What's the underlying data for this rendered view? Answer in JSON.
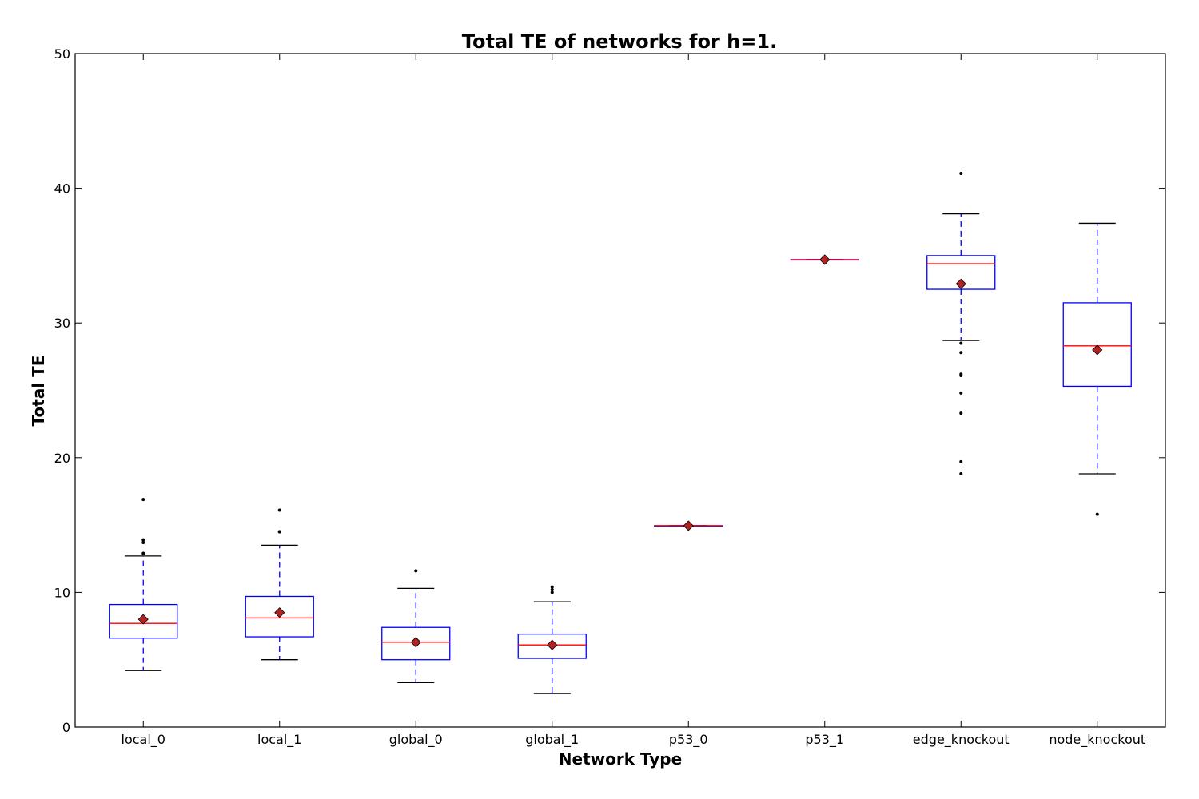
{
  "chart_data": {
    "type": "boxplot",
    "title": "Total TE of networks for h=1.",
    "xlabel": "Network Type",
    "ylabel": "Total TE",
    "ylim": [
      0,
      50
    ],
    "yticks": [
      0,
      10,
      20,
      30,
      40,
      50
    ],
    "grid": false,
    "colors": {
      "box": "#0000ff",
      "median": "#ff0000",
      "whisker": "#0000ff",
      "cap": "#000000",
      "mean_marker": "#b22222",
      "flier": "#000000"
    },
    "series": [
      {
        "name": "local_0",
        "whisker_low": 4.2,
        "q1": 6.6,
        "median": 7.7,
        "q3": 9.1,
        "whisker_high": 12.7,
        "mean": 8.0,
        "outliers": [
          12.9,
          13.7,
          13.9,
          16.9
        ]
      },
      {
        "name": "local_1",
        "whisker_low": 5.0,
        "q1": 6.7,
        "median": 8.1,
        "q3": 9.7,
        "whisker_high": 13.5,
        "mean": 8.5,
        "outliers": [
          14.5,
          14.5,
          16.1
        ]
      },
      {
        "name": "global_0",
        "whisker_low": 3.3,
        "q1": 5.0,
        "median": 6.3,
        "q3": 7.4,
        "whisker_high": 10.3,
        "mean": 6.3,
        "outliers": [
          11.6
        ]
      },
      {
        "name": "global_1",
        "whisker_low": 2.5,
        "q1": 5.1,
        "median": 6.1,
        "q3": 6.9,
        "whisker_high": 9.3,
        "mean": 6.1,
        "outliers": [
          10.0,
          10.2,
          10.4
        ]
      },
      {
        "name": "p53_0",
        "whisker_low": 14.95,
        "q1": 14.95,
        "median": 14.95,
        "q3": 14.95,
        "whisker_high": 14.95,
        "mean": 14.95,
        "outliers": []
      },
      {
        "name": "p53_1",
        "whisker_low": 34.7,
        "q1": 34.7,
        "median": 34.7,
        "q3": 34.7,
        "whisker_high": 34.7,
        "mean": 34.7,
        "outliers": []
      },
      {
        "name": "edge_knockout",
        "whisker_low": 28.7,
        "q1": 32.5,
        "median": 34.4,
        "q3": 35.0,
        "whisker_high": 38.1,
        "mean": 32.9,
        "outliers": [
          18.8,
          19.7,
          23.3,
          24.8,
          26.1,
          26.2,
          27.8,
          28.5,
          41.1
        ]
      },
      {
        "name": "node_knockout",
        "whisker_low": 18.8,
        "q1": 25.3,
        "median": 28.3,
        "q3": 31.5,
        "whisker_high": 37.4,
        "mean": 28.0,
        "outliers": [
          15.8
        ]
      }
    ]
  }
}
